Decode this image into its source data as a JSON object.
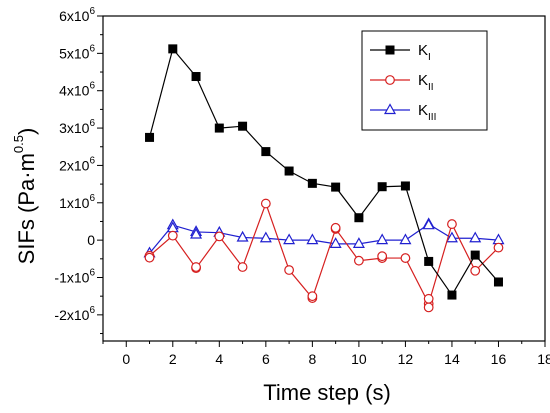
{
  "chart_data": {
    "type": "line",
    "xlabel": "Time step (s)",
    "ylabel": "SIFs (Pa·m",
    "ylabel_exponent": "0.5",
    "ylabel_close": ")",
    "xlim": [
      -1,
      18
    ],
    "ylim": [
      -2.7,
      6.0
    ],
    "y_unit_multiplier": 1000000,
    "xticks": [
      0,
      2,
      4,
      6,
      8,
      10,
      12,
      14,
      16,
      18
    ],
    "yticks": [
      {
        "value": 6,
        "label": "6x10",
        "exp": "6"
      },
      {
        "value": 5,
        "label": "5x10",
        "exp": "6"
      },
      {
        "value": 4,
        "label": "4x10",
        "exp": "6"
      },
      {
        "value": 3,
        "label": "3x10",
        "exp": "6"
      },
      {
        "value": 2,
        "label": "2x10",
        "exp": "6"
      },
      {
        "value": 1,
        "label": "1x10",
        "exp": "6"
      },
      {
        "value": 0,
        "label": "0",
        "exp": ""
      },
      {
        "value": -1,
        "label": "-1x10",
        "exp": "6"
      },
      {
        "value": -2,
        "label": "-2x10",
        "exp": "6"
      }
    ],
    "grid": false,
    "legend_position": "top-right",
    "x": [
      1,
      2,
      3,
      4,
      5,
      6,
      7,
      8,
      9,
      10,
      11,
      12,
      13,
      14,
      15,
      16
    ],
    "series": [
      {
        "name": "K",
        "subscript": "I",
        "color": "#000000",
        "marker": "filled-square",
        "values": [
          2.75,
          5.12,
          4.38,
          3.0,
          3.05,
          2.37,
          1.85,
          1.52,
          1.42,
          0.6,
          1.43,
          1.45,
          -0.57,
          -1.47,
          -0.4,
          -1.12
        ]
      },
      {
        "name": "K",
        "subscript": "II",
        "color": "#d62020",
        "marker": "open-circle",
        "values": [
          -0.42,
          0.12,
          -0.75,
          0.1,
          -0.72,
          0.98,
          -0.8,
          -1.55,
          0.3,
          -0.55,
          -0.48,
          -0.48,
          -1.7,
          0.43,
          -0.82,
          -0.2
        ]
      },
      {
        "name": "K",
        "subscript": "III",
        "color": "#2020d0",
        "marker": "open-triangle",
        "values": [
          -0.35,
          0.4,
          0.22,
          0.2,
          0.07,
          0.05,
          0.0,
          0.0,
          -0.1,
          -0.1,
          0.0,
          0.0,
          0.43,
          0.05,
          0.05,
          0.0
        ]
      }
    ],
    "extra_points": [
      {
        "series": 1,
        "x": 1,
        "value": -0.47
      },
      {
        "series": 1,
        "x": 3,
        "value": -0.72
      },
      {
        "series": 1,
        "x": 8,
        "value": -1.5
      },
      {
        "series": 1,
        "x": 9,
        "value": 0.33
      },
      {
        "series": 1,
        "x": 11,
        "value": -0.43
      },
      {
        "series": 1,
        "x": 13,
        "value": -1.8
      },
      {
        "series": 1,
        "x": 13,
        "value": -1.57
      },
      {
        "series": 2,
        "x": 2,
        "value": 0.32
      },
      {
        "series": 2,
        "x": 3,
        "value": 0.15
      },
      {
        "series": 2,
        "x": 13,
        "value": 0.4
      }
    ]
  }
}
